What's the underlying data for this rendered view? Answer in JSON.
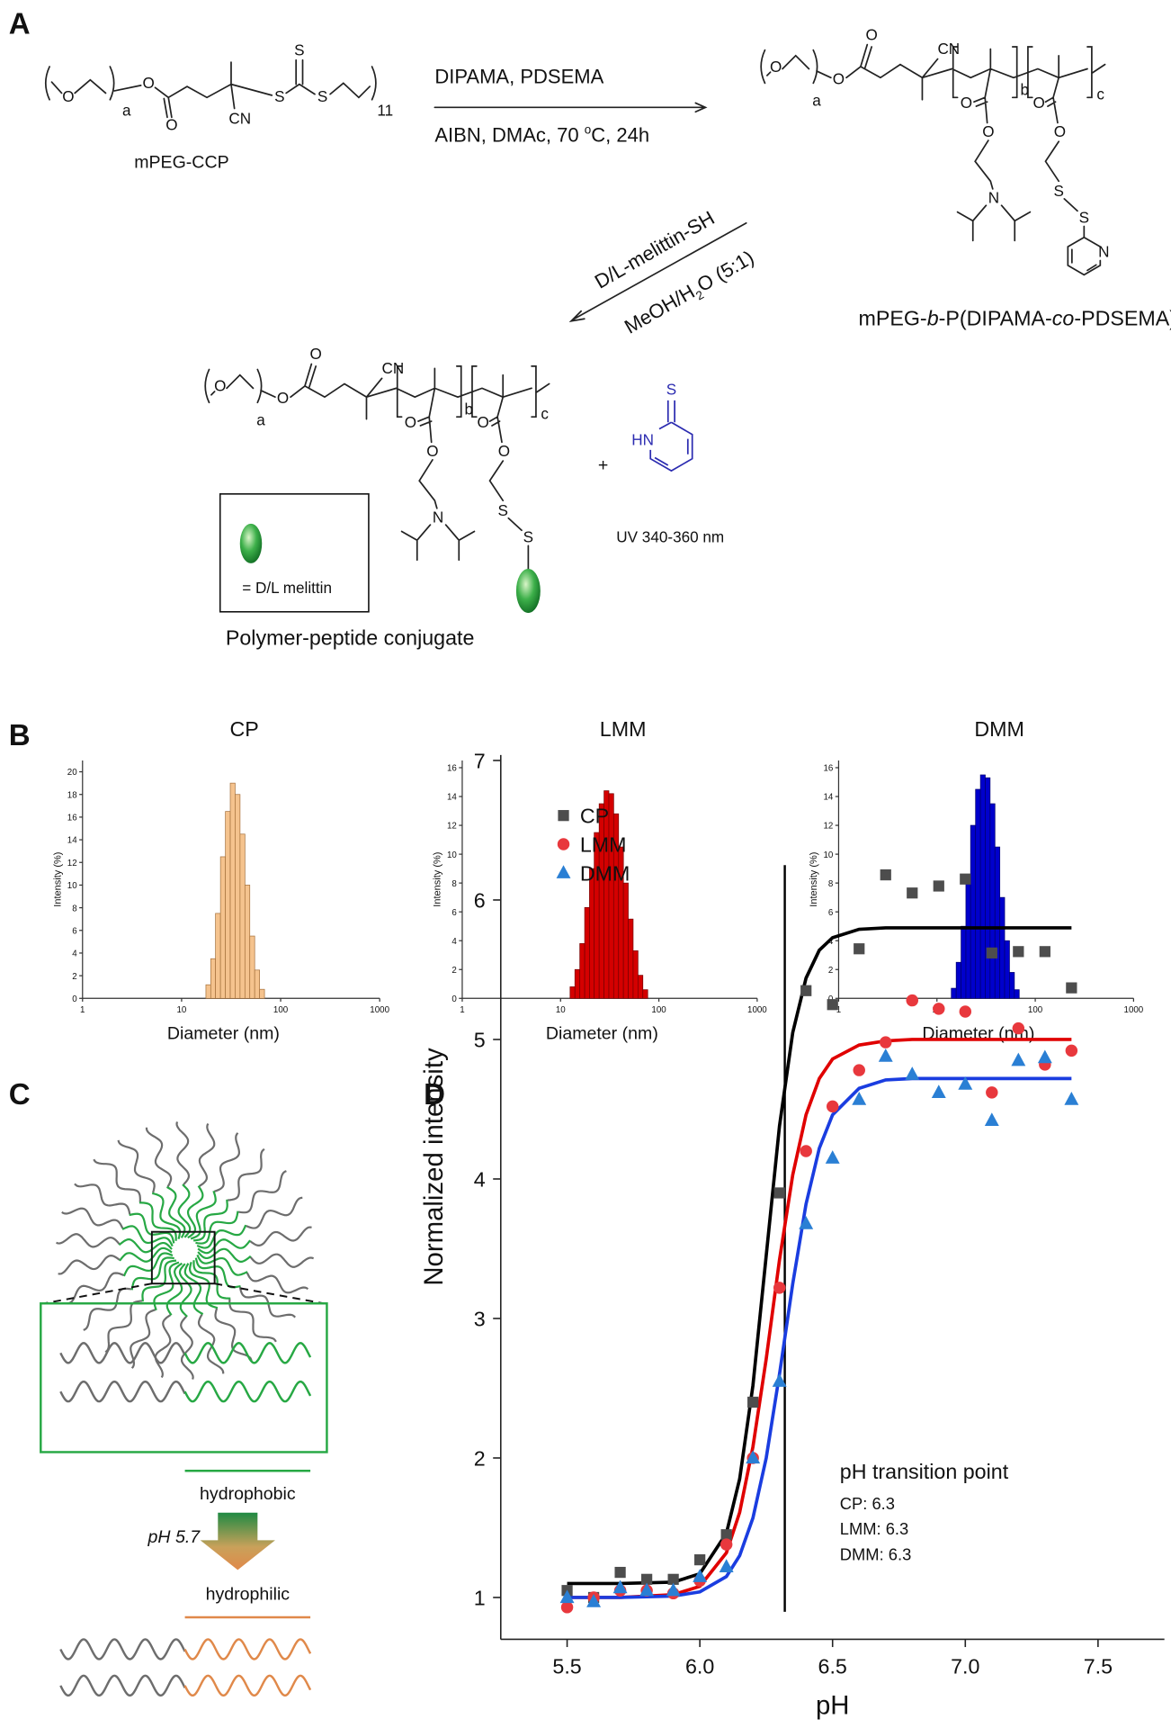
{
  "panel_labels": {
    "a": "A",
    "b": "B",
    "c": "C",
    "d": "D"
  },
  "scheme": {
    "reactant": {
      "name": "mPEG-CCP",
      "atoms": [
        "O",
        "a",
        "O",
        "O",
        "CN",
        "S",
        "S",
        "S",
        "11"
      ]
    },
    "step1": {
      "top": "DIPAMA, PDSEMA",
      "bottom": [
        "AIBN, DMAc, 70 ",
        "o",
        "C, 24h"
      ]
    },
    "product": {
      "name": [
        "mPEG-",
        "b",
        "-P(DIPAMA-",
        "co",
        "-PDSEMA)"
      ],
      "atoms": [
        "O",
        "a",
        "O",
        "O",
        "CN",
        "b",
        "c",
        "O",
        "O",
        "O",
        "O",
        "N",
        "S",
        "S",
        "N"
      ]
    },
    "step2": {
      "top": "D/L-melittin-SH",
      "bottom": [
        "MeOH/H",
        "2",
        "O (5:1)"
      ]
    },
    "conjugate": {
      "name": "Polymer-peptide conjugate",
      "atoms": [
        "O",
        "a",
        "O",
        "O",
        "CN",
        "b",
        "c",
        "O",
        "O",
        "O",
        "O",
        "N",
        "S",
        "S"
      ],
      "legend": "= D/L melittin"
    },
    "plus": "+",
    "byproduct": {
      "atoms": [
        "S",
        "HN"
      ],
      "note": "UV 340-360 nm"
    }
  },
  "micelle": {
    "hydrophobic": "hydrophobic",
    "condition": "pH 5.7",
    "hydrophilic": "hydrophilic"
  },
  "chart_data": [
    {
      "type": "histogram",
      "title": "CP",
      "x_label": "Diameter (nm)",
      "y_label": "Intensity (%)",
      "color": "#f5c38e",
      "edge_color": "#a8743f",
      "log_x": true,
      "xlim": [
        1,
        1000
      ],
      "xticks": [
        1,
        10,
        100,
        1000
      ],
      "ylim": [
        0,
        21
      ],
      "yticks": [
        0,
        2,
        4,
        6,
        8,
        10,
        12,
        14,
        16,
        18,
        20
      ],
      "bins": [
        17.6,
        19.7,
        22.0,
        24.7,
        27.7,
        31.0,
        34.7,
        38.9,
        43.6,
        48.8,
        54.7,
        61.3,
        68.7
      ],
      "values": [
        1.2,
        3.5,
        7.5,
        12.5,
        16.5,
        19,
        18,
        14.5,
        10,
        5.5,
        2.5,
        0.8
      ]
    },
    {
      "type": "histogram",
      "title": "LMM",
      "x_label": "Diameter (nm)",
      "y_label": "Intensity (%)",
      "color": "#d40000",
      "edge_color": "#7a0000",
      "log_x": true,
      "xlim": [
        1,
        1000
      ],
      "xticks": [
        1,
        10,
        100,
        1000
      ],
      "ylim": [
        0,
        16.5
      ],
      "yticks": [
        0,
        2,
        4,
        6,
        8,
        10,
        12,
        14,
        16
      ],
      "bins": [
        12.5,
        14.0,
        15.7,
        17.6,
        19.7,
        22.0,
        24.7,
        27.7,
        31.0,
        34.7,
        38.9,
        43.6,
        48.8,
        54.7,
        61.3,
        68.7,
        77.0
      ],
      "values": [
        0.8,
        2,
        3.8,
        6.3,
        9,
        11.5,
        13.5,
        14.4,
        14.2,
        12.8,
        10.5,
        8,
        5.5,
        3.3,
        1.6,
        0.6
      ]
    },
    {
      "type": "histogram",
      "title": "DMM",
      "x_label": "Diameter (nm)",
      "y_label": "Intensity (%)",
      "color": "#0000cc",
      "edge_color": "#000070",
      "log_x": true,
      "xlim": [
        1,
        1000
      ],
      "xticks": [
        1,
        10,
        100,
        1000
      ],
      "ylim": [
        0,
        16.5
      ],
      "yticks": [
        0,
        2,
        4,
        6,
        8,
        10,
        12,
        14,
        16
      ],
      "bins": [
        14.0,
        15.7,
        17.6,
        19.7,
        22.0,
        24.7,
        27.7,
        31.0,
        34.7,
        38.9,
        43.6,
        48.8,
        54.7,
        61.3,
        68.7
      ],
      "values": [
        0.7,
        2.5,
        5,
        8.5,
        12,
        14.5,
        15.5,
        15.3,
        13.5,
        10.5,
        7,
        4,
        1.8,
        0.6
      ]
    },
    {
      "type": "scatter",
      "x_label": "pH",
      "y_label": "Normalized intensity",
      "legend": "upper left",
      "xlim": [
        5.25,
        7.75
      ],
      "xticks": [
        5.5,
        {
          "value": 6,
          "label": "6.0"
        },
        6.5,
        {
          "value": 7,
          "label": "7.0"
        },
        7.5
      ],
      "ylim": [
        0.7,
        7
      ],
      "yticks": [
        1,
        2,
        3,
        4,
        5,
        6,
        7
      ],
      "x": [
        5.5,
        5.6,
        5.7,
        5.8,
        5.9,
        6.0,
        6.1,
        6.2,
        6.3,
        6.4,
        6.5,
        6.6,
        6.7,
        6.8,
        6.9,
        7.0,
        7.1,
        7.2,
        7.3,
        7.4
      ],
      "series": [
        {
          "name": "CP",
          "color": "#4d4d4d",
          "marker": "square",
          "values": [
            1.05,
            1.0,
            1.18,
            1.13,
            1.13,
            1.27,
            1.45,
            2.4,
            3.9,
            5.35,
            5.25,
            5.65,
            6.18,
            6.05,
            6.1,
            6.15,
            5.62,
            5.63,
            5.63,
            5.37
          ]
        },
        {
          "name": "LMM",
          "color": "#e8383d",
          "marker": "circle",
          "values": [
            0.93,
            1.0,
            1.05,
            1.05,
            1.03,
            1.12,
            1.38,
            2.0,
            3.22,
            4.2,
            4.52,
            4.78,
            4.98,
            5.28,
            5.22,
            5.2,
            4.62,
            5.08,
            4.82,
            4.92
          ]
        },
        {
          "name": "DMM",
          "color": "#2a7fd4",
          "marker": "triangle",
          "values": [
            1.0,
            0.97,
            1.07,
            1.05,
            1.05,
            1.15,
            1.22,
            2.0,
            2.55,
            3.68,
            4.15,
            4.57,
            4.88,
            4.75,
            4.62,
            4.68,
            4.42,
            4.85,
            4.87,
            4.57
          ]
        }
      ],
      "fit_x": [
        5.5,
        5.7,
        5.9,
        6.0,
        6.1,
        6.15,
        6.2,
        6.25,
        6.3,
        6.35,
        6.4,
        6.45,
        6.5,
        6.6,
        6.7,
        6.8,
        7.0,
        7.4
      ],
      "fits": [
        {
          "color": "#000000",
          "values": [
            1.1,
            1.1,
            1.11,
            1.17,
            1.46,
            1.85,
            2.52,
            3.45,
            4.38,
            5.05,
            5.44,
            5.64,
            5.73,
            5.79,
            5.8,
            5.8,
            5.8,
            5.8
          ]
        },
        {
          "color": "#e00000",
          "values": [
            1.0,
            1.0,
            1.02,
            1.08,
            1.32,
            1.61,
            2.08,
            2.71,
            3.42,
            4.03,
            4.46,
            4.72,
            4.86,
            4.96,
            4.99,
            5.0,
            5.0,
            5.0
          ]
        },
        {
          "color": "#1a3de0",
          "values": [
            1.0,
            1.0,
            1.01,
            1.04,
            1.15,
            1.3,
            1.57,
            2.0,
            2.6,
            3.25,
            3.82,
            4.22,
            4.46,
            4.65,
            4.71,
            4.72,
            4.72,
            4.72
          ]
        }
      ],
      "reference_line_x": 6.32,
      "annotation": {
        "title": "pH transition point",
        "lines": [
          "CP: 6.3",
          "LMM: 6.3",
          "DMM: 6.3"
        ]
      }
    }
  ]
}
